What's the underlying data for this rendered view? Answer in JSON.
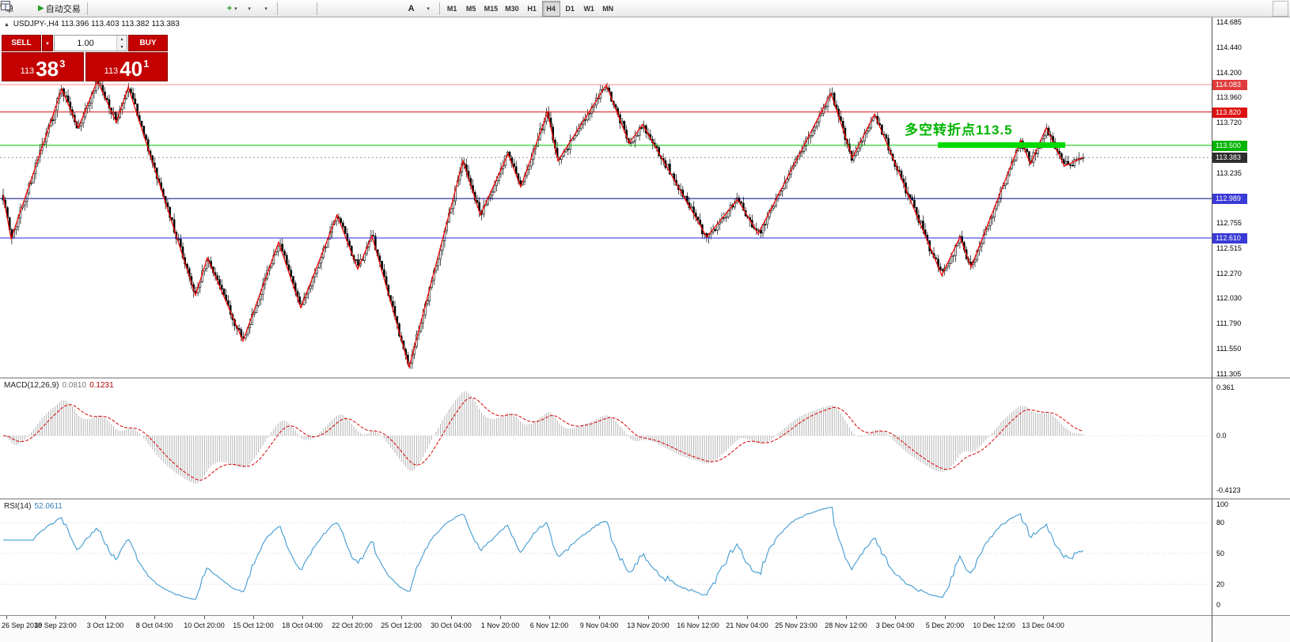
{
  "app": {
    "accent_red": "#c40000",
    "chart_bg": "#ffffff"
  },
  "icons": {
    "caret_down": "▾",
    "caret_up": "▴",
    "play": "▶",
    "marker": "▲",
    "plus": "+"
  },
  "toolbar": {
    "order_label": "单",
    "autotrade_label": "自动交易",
    "text_tool_label": "A",
    "timeframes": [
      "M1",
      "M5",
      "M15",
      "M30",
      "H1",
      "H4",
      "D1",
      "W1",
      "MN"
    ],
    "active_timeframe": "H4"
  },
  "chart": {
    "title_symbol": "USDJPY-,H4",
    "title_ohlc": "113.396 113.403 113.382 113.383",
    "trade_panel": {
      "sell_label": "SELL",
      "buy_label": "BUY",
      "volume": "1.00",
      "sell_price_prefix": "113",
      "sell_price_main": "38",
      "sell_price_sup": "3",
      "buy_price_prefix": "113",
      "buy_price_main": "40",
      "buy_price_sup": "1"
    },
    "annotation": {
      "text": "多空转折点113.5",
      "color": "#00b400",
      "level": 113.5
    },
    "current_price": "113.383",
    "levels": [
      {
        "price": 114.083,
        "label": "114.083",
        "line_color": "#ff8a8a",
        "badge_color": "#e03c3c"
      },
      {
        "price": 113.82,
        "label": "113.820",
        "line_color": "#dd1111",
        "badge_color": "#dd1111"
      },
      {
        "price": 113.5,
        "label": "113.500",
        "line_color": "#00c400",
        "badge_color": "#00b400"
      },
      {
        "price": 112.989,
        "label": "112.989",
        "line_color": "#000080",
        "badge_color": "#3a3ad6"
      },
      {
        "price": 112.61,
        "label": "112.610",
        "line_color": "#2727dd",
        "badge_color": "#3a3ad6"
      }
    ],
    "y_axis_labels": [
      "114.685",
      "114.440",
      "114.200",
      "113.960",
      "113.720",
      "113.480",
      "113.235",
      "112.995",
      "112.755",
      "112.515",
      "112.270",
      "112.030",
      "111.790",
      "111.550",
      "111.305"
    ]
  },
  "macd": {
    "label": "MACD(12,26,9)",
    "value_main": "0.0810",
    "value_signal": "0.1231",
    "scale_labels": [
      "0.361",
      "0.0",
      "-0.4123"
    ],
    "histogram_color": "#b4b4b4",
    "signal_color": "#d40000"
  },
  "rsi": {
    "label": "RSI(14)",
    "value": "52.0611",
    "scale_labels": [
      "100",
      "80",
      "50",
      "20",
      "0"
    ],
    "levels": [
      80,
      50,
      20
    ],
    "line_color": "#419bd2"
  },
  "time_axis": {
    "labels": [
      "26 Sep 2018",
      "30 Sep 23:00",
      "3 Oct 12:00",
      "8 Oct 04:00",
      "10 Oct 20:00",
      "15 Oct 12:00",
      "18 Oct 04:00",
      "22 Oct 20:00",
      "25 Oct 12:00",
      "30 Oct 04:00",
      "1 Nov 20:00",
      "6 Nov 12:00",
      "9 Nov 04:00",
      "13 Nov 20:00",
      "16 Nov 12:00",
      "21 Nov 04:00",
      "25 Nov 23:00",
      "28 Nov 12:00",
      "3 Dec 04:00",
      "5 Dec 20:00",
      "10 Dec 12:00",
      "13 Dec 04:00"
    ]
  },
  "chart_data": {
    "type": "candlestick",
    "symbol": "USDJPY",
    "timeframe": "H4",
    "visible_price_range": [
      111.305,
      114.685
    ],
    "current_price": 113.383,
    "horizontal_levels": [
      114.083,
      113.82,
      113.5,
      112.989,
      112.61
    ],
    "zigzag_points": [
      [
        4,
        113.02
      ],
      [
        14,
        112.6
      ],
      [
        78,
        114.04
      ],
      [
        99,
        113.67
      ],
      [
        123,
        114.12
      ],
      [
        147,
        113.72
      ],
      [
        162,
        114.06
      ],
      [
        247,
        112.06
      ],
      [
        262,
        112.42
      ],
      [
        307,
        111.62
      ],
      [
        352,
        112.57
      ],
      [
        380,
        111.94
      ],
      [
        426,
        112.83
      ],
      [
        452,
        112.31
      ],
      [
        470,
        112.63
      ],
      [
        517,
        111.37
      ],
      [
        585,
        113.35
      ],
      [
        607,
        112.83
      ],
      [
        642,
        113.42
      ],
      [
        658,
        113.1
      ],
      [
        692,
        113.82
      ],
      [
        705,
        113.35
      ],
      [
        766,
        114.08
      ],
      [
        795,
        113.52
      ],
      [
        812,
        113.7
      ],
      [
        893,
        112.62
      ],
      [
        932,
        112.98
      ],
      [
        958,
        112.65
      ],
      [
        1050,
        114.0
      ],
      [
        1077,
        113.38
      ],
      [
        1105,
        113.8
      ],
      [
        1190,
        112.25
      ],
      [
        1213,
        112.62
      ],
      [
        1227,
        112.33
      ],
      [
        1290,
        113.55
      ],
      [
        1302,
        113.32
      ],
      [
        1322,
        113.67
      ],
      [
        1345,
        113.3
      ],
      [
        1368,
        113.383
      ]
    ],
    "indicators": [
      {
        "name": "MACD",
        "params": [
          12,
          26,
          9
        ],
        "current": [
          0.081,
          0.1231
        ],
        "scale": [
          -0.4123,
          0.361
        ]
      },
      {
        "name": "RSI",
        "params": [
          14
        ],
        "current": 52.0611,
        "scale": [
          0,
          100
        ],
        "levels": [
          80,
          50,
          20
        ]
      }
    ]
  }
}
